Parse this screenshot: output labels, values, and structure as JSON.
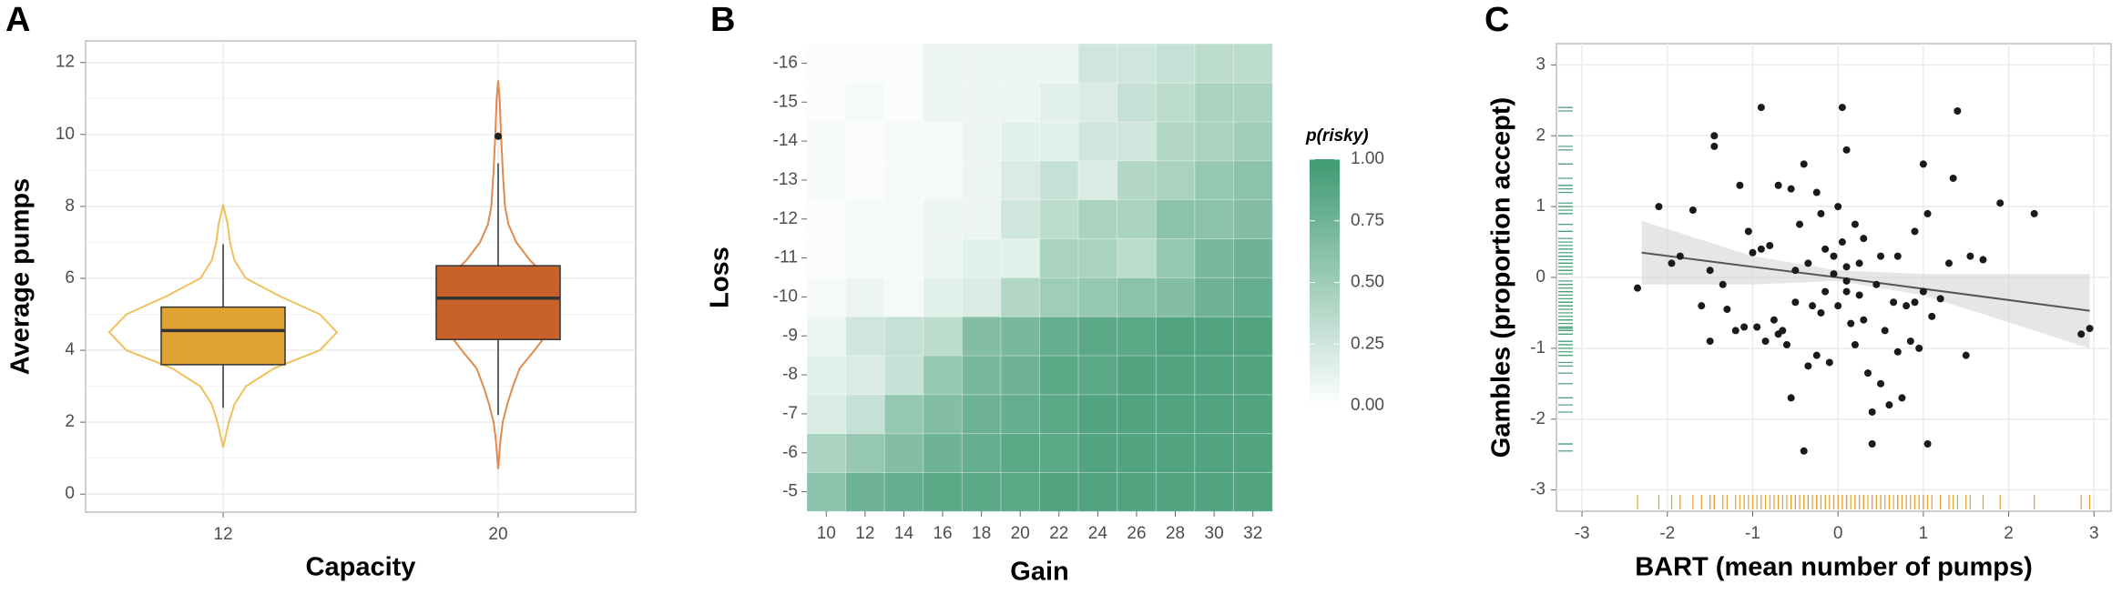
{
  "chart_data": [
    {
      "type": "violin",
      "panel": "A",
      "x_label": "Capacity",
      "y_label": "Average pumps",
      "categories": [
        "12",
        "20"
      ],
      "colors": [
        "#e0a232",
        "#c9622a"
      ],
      "violin_colors": [
        "#f0c05c",
        "#e08a4c"
      ],
      "boxes": [
        {
          "min": 2.4,
          "q1": 3.6,
          "median": 4.55,
          "q3": 5.2,
          "max": 6.95,
          "outliers": []
        },
        {
          "min": 2.2,
          "q1": 4.3,
          "median": 5.45,
          "q3": 6.35,
          "max": 9.2,
          "outliers": [
            9.95
          ]
        }
      ],
      "violins": [
        {
          "y": [
            1.3,
            2,
            2.5,
            3,
            3.5,
            4,
            4.5,
            5,
            5.5,
            6,
            6.5,
            7,
            7.5,
            8.05
          ],
          "density": [
            0,
            0.05,
            0.1,
            0.2,
            0.45,
            0.85,
            1,
            0.85,
            0.5,
            0.2,
            0.1,
            0.06,
            0.04,
            0
          ]
        },
        {
          "y": [
            0.7,
            1.5,
            2,
            2.5,
            3,
            3.5,
            4,
            4.5,
            5,
            5.5,
            6,
            6.5,
            7,
            7.5,
            8,
            9,
            10,
            11,
            11.5
          ],
          "density": [
            0,
            0.02,
            0.04,
            0.08,
            0.13,
            0.19,
            0.32,
            0.44,
            0.54,
            0.54,
            0.44,
            0.28,
            0.16,
            0.09,
            0.06,
            0.04,
            0.025,
            0.013,
            0
          ]
        }
      ],
      "ylim": [
        -0.5,
        12.6
      ],
      "yticks": [
        0,
        2,
        4,
        6,
        8,
        10,
        12
      ],
      "grid": true
    },
    {
      "type": "heatmap",
      "panel": "B",
      "x_label": "Gain",
      "y_label": "Loss",
      "x_categories": [
        "10",
        "12",
        "14",
        "16",
        "18",
        "20",
        "22",
        "24",
        "26",
        "28",
        "30",
        "32"
      ],
      "y_categories": [
        "-5",
        "-6",
        "-7",
        "-8",
        "-9",
        "-10",
        "-11",
        "-12",
        "-13",
        "-14",
        "-15",
        "-16"
      ],
      "values": [
        [
          0.6,
          0.75,
          0.8,
          0.85,
          0.85,
          0.85,
          0.9,
          0.9,
          0.9,
          0.9,
          0.9,
          0.9
        ],
        [
          0.45,
          0.55,
          0.65,
          0.75,
          0.8,
          0.85,
          0.85,
          0.9,
          0.9,
          0.9,
          0.9,
          0.9
        ],
        [
          0.2,
          0.3,
          0.55,
          0.65,
          0.75,
          0.8,
          0.85,
          0.9,
          0.9,
          0.9,
          0.9,
          0.9
        ],
        [
          0.15,
          0.2,
          0.3,
          0.55,
          0.7,
          0.75,
          0.85,
          0.85,
          0.9,
          0.9,
          0.9,
          0.9
        ],
        [
          0.1,
          0.25,
          0.3,
          0.35,
          0.65,
          0.7,
          0.8,
          0.85,
          0.85,
          0.9,
          0.9,
          0.9
        ],
        [
          0.05,
          0.1,
          0.05,
          0.15,
          0.2,
          0.4,
          0.5,
          0.55,
          0.6,
          0.65,
          0.75,
          0.8
        ],
        [
          0.02,
          0.05,
          0.05,
          0.1,
          0.15,
          0.15,
          0.45,
          0.45,
          0.35,
          0.55,
          0.7,
          0.75
        ],
        [
          0.02,
          0.05,
          0.05,
          0.1,
          0.1,
          0.25,
          0.35,
          0.45,
          0.45,
          0.6,
          0.6,
          0.65
        ],
        [
          0.05,
          0.02,
          0.05,
          0.05,
          0.1,
          0.2,
          0.3,
          0.2,
          0.4,
          0.45,
          0.55,
          0.6
        ],
        [
          0.05,
          0.02,
          0.05,
          0.05,
          0.1,
          0.15,
          0.15,
          0.25,
          0.25,
          0.4,
          0.45,
          0.5
        ],
        [
          0.02,
          0.05,
          0.02,
          0.1,
          0.1,
          0.1,
          0.15,
          0.2,
          0.3,
          0.35,
          0.45,
          0.45
        ],
        [
          0.02,
          0.02,
          0.02,
          0.1,
          0.1,
          0.1,
          0.1,
          0.25,
          0.25,
          0.3,
          0.35,
          0.35
        ]
      ],
      "legend_title": "p(risky)",
      "color_low": "#ffffff",
      "color_high": "#3f9a73",
      "colorbar_lim": [
        0,
        1
      ],
      "colorbar_ticks": [
        {
          "value": 0,
          "label": "0.00"
        },
        {
          "value": 0.25,
          "label": "0.25"
        },
        {
          "value": 0.5,
          "label": "0.50"
        },
        {
          "value": 0.75,
          "label": "0.75"
        },
        {
          "value": 1,
          "label": "1.00"
        }
      ]
    },
    {
      "type": "scatter",
      "panel": "C",
      "x_label": "BART (mean number of pumps)",
      "y_label": "Gambles (proportion accept)",
      "x": [
        -2.35,
        -2.1,
        -1.95,
        -1.85,
        -1.7,
        -1.6,
        -1.5,
        -1.5,
        -1.45,
        -1.45,
        -1.35,
        -1.3,
        -1.2,
        -1.15,
        -1.1,
        -1.05,
        -1.0,
        -0.95,
        -0.9,
        -0.9,
        -0.85,
        -0.8,
        -0.75,
        -0.7,
        -0.7,
        -0.65,
        -0.6,
        -0.55,
        -0.5,
        -0.5,
        -0.45,
        -0.4,
        -0.35,
        -0.35,
        -0.3,
        -0.25,
        -0.25,
        -0.2,
        -0.2,
        -0.15,
        -0.15,
        -0.1,
        -0.05,
        0.0,
        0.0,
        0.05,
        0.05,
        0.1,
        0.1,
        0.1,
        0.15,
        0.2,
        0.2,
        0.25,
        0.3,
        0.3,
        0.35,
        0.4,
        0.4,
        0.45,
        0.5,
        0.5,
        0.55,
        0.6,
        0.65,
        0.7,
        0.7,
        0.75,
        0.8,
        0.85,
        0.9,
        0.9,
        0.95,
        1.0,
        1.0,
        1.05,
        1.05,
        1.1,
        1.2,
        1.3,
        1.35,
        1.4,
        1.5,
        1.55,
        1.7,
        1.9,
        2.3,
        2.85,
        2.95,
        -0.4,
        -0.05,
        0.1,
        -0.55,
        0.25
      ],
      "y": [
        -0.15,
        1.0,
        0.2,
        0.3,
        0.95,
        -0.4,
        0.1,
        -0.9,
        2.0,
        1.85,
        -0.1,
        -0.45,
        -0.75,
        1.3,
        -0.7,
        0.65,
        0.35,
        -0.7,
        0.4,
        2.4,
        -0.9,
        0.45,
        -0.6,
        1.3,
        -0.8,
        -0.75,
        -0.95,
        1.25,
        -0.35,
        0.1,
        0.75,
        1.6,
        0.2,
        -1.25,
        -0.4,
        1.2,
        -1.1,
        0.9,
        -0.5,
        0.4,
        -0.2,
        -1.2,
        0.3,
        1.0,
        -0.4,
        0.5,
        2.4,
        -0.2,
        1.8,
        0.15,
        -0.65,
        0.75,
        -0.95,
        0.2,
        -0.6,
        0.55,
        -1.35,
        -1.9,
        -2.35,
        -0.1,
        0.3,
        -1.5,
        -0.75,
        -1.8,
        -0.35,
        0.3,
        -1.05,
        -1.7,
        -0.4,
        -0.9,
        0.65,
        -0.35,
        -1.0,
        1.6,
        -0.2,
        0.9,
        -2.35,
        -0.55,
        -0.3,
        0.2,
        1.4,
        2.35,
        -1.1,
        0.3,
        0.25,
        1.05,
        0.9,
        -0.8,
        -0.72,
        -2.45,
        0.05,
        -0.05,
        -1.7,
        -0.25
      ],
      "color": "#1a1a1a",
      "fit": {
        "x": [
          -2.3,
          -1,
          0,
          1,
          2.95
        ],
        "y": [
          0.35,
          0.15,
          0,
          -0.16,
          -0.47
        ],
        "upper": [
          0.8,
          0.3,
          0.1,
          0.05,
          0.05
        ],
        "lower": [
          -0.1,
          -0.1,
          -0.05,
          -0.25,
          -1.0
        ]
      },
      "line_color": "#555555",
      "band_color": "#d6d6d6",
      "rug_x_color": "#e0a232",
      "rug_y_color": "#4a9f7a",
      "xlim": [
        -3.3,
        3.2
      ],
      "xticks": [
        -3,
        -2,
        -1,
        0,
        1,
        2,
        3
      ],
      "ylim": [
        -3.3,
        3.3
      ],
      "yticks": [
        -3,
        -2,
        -1,
        0,
        1,
        2,
        3
      ],
      "grid": true
    }
  ]
}
